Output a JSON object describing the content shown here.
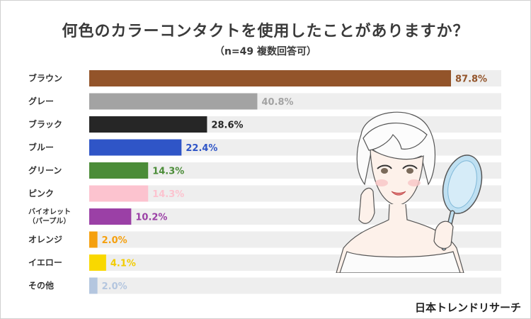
{
  "title": "何色のカラーコンタクトを使用したことがありますか？",
  "subtitle": "（n=49 複数回答可）",
  "brand": "日本トレンドリサーチ",
  "chart_data": {
    "type": "bar",
    "orientation": "horizontal",
    "title": "何色のカラーコンタクトを使用したことがありますか？",
    "subtitle": "（n=49 複数回答可）",
    "xlim": [
      0,
      100
    ],
    "unit": "%",
    "grid": false,
    "legend": "none",
    "categories": [
      [
        "ブラウン"
      ],
      [
        "グレー"
      ],
      [
        "ブラック"
      ],
      [
        "ブルー"
      ],
      [
        "グリーン"
      ],
      [
        "ピンク"
      ],
      [
        "バイオレット",
        "（パープル）"
      ],
      [
        "オレンジ"
      ],
      [
        "イエロー"
      ],
      [
        "その他"
      ]
    ],
    "values": [
      87.8,
      40.8,
      28.6,
      22.4,
      14.3,
      14.3,
      10.2,
      2.0,
      4.1,
      2.0
    ],
    "labels": [
      "87.8%",
      "40.8%",
      "28.6%",
      "22.4%",
      "14.3%",
      "14.3%",
      "10.2%",
      "2.0%",
      "4.1%",
      "2.0%"
    ],
    "colors": [
      "#93542a",
      "#a3a3a3",
      "#262626",
      "#2f55c7",
      "#4b8c38",
      "#fcc3cf",
      "#9b40a6",
      "#f5a00e",
      "#f9d800",
      "#b4c6df"
    ],
    "label_colors": [
      "#93542a",
      "#a3a3a3",
      "#262626",
      "#2f55c7",
      "#4b8c38",
      "#fcc3cf",
      "#9b40a6",
      "#f5a00e",
      "#f2cc00",
      "#b4c6df"
    ],
    "track_color": "#eeeeee"
  }
}
